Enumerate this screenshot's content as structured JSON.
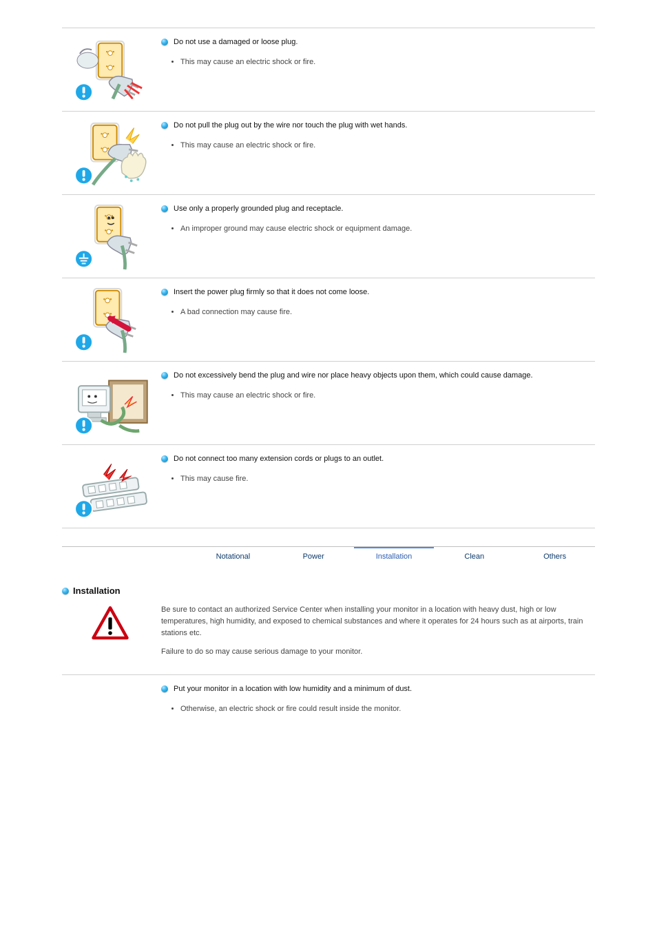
{
  "rows": [
    {
      "head": "Do not use a damaged or loose plug.",
      "sub": "This may cause an electric shock or fire.",
      "illus": "damaged-plug"
    },
    {
      "head": "Do not pull the plug out by the wire nor touch the plug with wet hands.",
      "sub": "This may cause an electric shock or fire.",
      "illus": "wet-hands"
    },
    {
      "head": "Use only a properly grounded plug and receptacle.",
      "sub": "An improper ground may cause electric shock or equipment damage.",
      "illus": "ground-plug",
      "badge": "ground"
    },
    {
      "head": "Insert the power plug firmly so that it does not come loose.",
      "sub": "A bad connection may cause fire.",
      "illus": "firm-plug"
    },
    {
      "head": "Do not excessively bend the plug and wire nor place heavy objects upon them, which could cause damage.",
      "sub": "This may cause an electric shock or fire.",
      "illus": "bend-wire"
    },
    {
      "head": "Do not connect too many extension cords or plugs to an outlet.",
      "sub": "This may cause fire.",
      "illus": "power-strip"
    }
  ],
  "tabs": {
    "items": [
      "Notational",
      "Power",
      "Installation",
      "Clean",
      "Others"
    ],
    "active": 2
  },
  "install": {
    "title": "Installation",
    "hint": "Be sure to contact an authorized Service Center when installing your monitor in a location with heavy dust, high or low temperatures, high humidity, and exposed to chemical substances and where it operates for 24 hours such as at airports, train stations etc.",
    "hint2": "Failure to do so may cause serious damage to your monitor.",
    "row_head": "Put your monitor in a location with low humidity and a minimum of dust.",
    "row_sub": "Otherwise, an electric shock or fire could result inside the monitor."
  },
  "colors": {
    "warn_fill": "#f6a21a",
    "warn_stroke": "#fff",
    "warn_bang": "#fff",
    "ground_fill": "#3fb8e6",
    "tri_stroke": "#cc0011",
    "tri_bang": "#000"
  }
}
